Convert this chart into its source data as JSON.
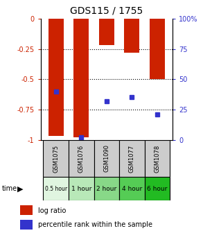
{
  "title": "GDS115 / 1755",
  "samples": [
    "GSM1075",
    "GSM1076",
    "GSM1090",
    "GSM1077",
    "GSM1078"
  ],
  "time_labels": [
    "0.5 hour",
    "1 hour",
    "2 hour",
    "4 hour",
    "6 hour"
  ],
  "log_ratios": [
    -0.97,
    -0.98,
    -0.22,
    -0.28,
    -0.5
  ],
  "percentile_ranks": [
    0.4,
    0.02,
    0.32,
    0.35,
    0.21
  ],
  "bar_color": "#cc2200",
  "marker_color": "#3333cc",
  "ylim_left": [
    -1.0,
    0.0
  ],
  "yticks_left": [
    0,
    -0.25,
    -0.5,
    -0.75,
    -1.0
  ],
  "ytick_labels_left": [
    "0",
    "-0.25",
    "-0.5",
    "-0.75",
    "-1"
  ],
  "yticks_right": [
    0.0,
    0.25,
    0.5,
    0.75,
    1.0
  ],
  "ytick_labels_right": [
    "0",
    "25",
    "50",
    "75",
    "100%"
  ],
  "time_colors": [
    "#e0f5e0",
    "#b8e8b8",
    "#88d888",
    "#55cc55",
    "#22bb22"
  ],
  "bar_width": 0.6,
  "title_fontsize": 10,
  "left_color": "#cc2200",
  "right_color": "#3333cc",
  "legend_logratio_label": "log ratio",
  "legend_percentile_label": "percentile rank within the sample",
  "sample_bg_color": "#cccccc"
}
